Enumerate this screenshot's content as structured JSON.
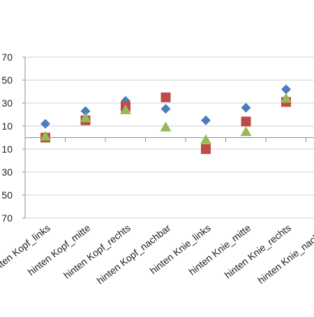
{
  "chart_data": {
    "type": "scatter",
    "categories": [
      "hinten Kopf_links",
      "hinten Kopf_mitte",
      "hinten Kopf_rechts",
      "hinten Kopf_nachbar",
      "hinten Knie_links",
      "hinten Knie_mitte",
      "hinten Knie_rechts",
      "hinten Knie_nachbar"
    ],
    "y_tick_labels": [
      "70",
      "50",
      "30",
      "10",
      "10",
      "30",
      "50",
      "70"
    ],
    "y_tick_values": [
      70,
      50,
      30,
      10,
      -10,
      -30,
      -50,
      -70
    ],
    "ylim": [
      -70,
      70
    ],
    "grid": true,
    "series": [
      {
        "marker": "diamond",
        "color": "#4a7ebb",
        "values": [
          12,
          23,
          32,
          25,
          15,
          26,
          42,
          null
        ]
      },
      {
        "marker": "square",
        "color": "#be4b48",
        "values": [
          0,
          15,
          27,
          35,
          -10,
          14,
          31,
          null
        ]
      },
      {
        "marker": "triangle",
        "color": "#98b954",
        "values": [
          1,
          17,
          24,
          9,
          -2,
          5,
          34,
          null
        ]
      }
    ]
  }
}
